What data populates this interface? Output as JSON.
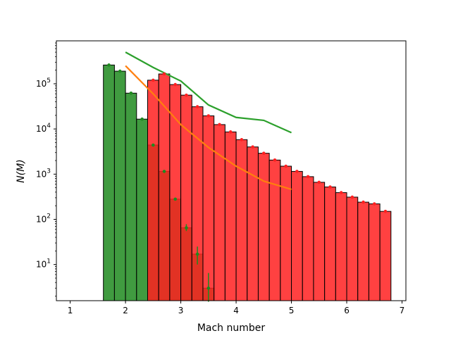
{
  "chart_data": {
    "type": "bar",
    "title": "",
    "xlabel": "Mach number",
    "ylabel": "N(M)",
    "xlim": [
      0.75,
      7.07
    ],
    "ylim_log10": [
      0.2,
      5.95
    ],
    "yscale": "log",
    "grid": false,
    "legend": "none",
    "bin_width": 0.2,
    "x_ticks": [
      1,
      2,
      3,
      4,
      5,
      6,
      7
    ],
    "y_ticks": [
      {
        "exp": 1,
        "label": "10",
        "sup": "1"
      },
      {
        "exp": 2,
        "label": "10",
        "sup": "2"
      },
      {
        "exp": 3,
        "label": "10",
        "sup": "3"
      },
      {
        "exp": 4,
        "label": "10",
        "sup": "4"
      },
      {
        "exp": 5,
        "label": "10",
        "sup": "5"
      }
    ],
    "series": [
      {
        "color": "#1f8a1f",
        "bar_alpha": 0.85,
        "bins": [
          {
            "left": 1.6,
            "value": 260000
          },
          {
            "left": 1.8,
            "value": 190000
          },
          {
            "left": 2.0,
            "value": 62000
          },
          {
            "left": 2.2,
            "value": 16500
          },
          {
            "left": 2.4,
            "value": 4400
          },
          {
            "left": 2.6,
            "value": 1150
          },
          {
            "left": 2.8,
            "value": 280
          },
          {
            "left": 3.0,
            "value": 65
          },
          {
            "left": 3.2,
            "value": 17
          },
          {
            "left": 3.4,
            "value": 3
          }
        ],
        "error_bars": [
          {
            "x": 3.1,
            "low": 55,
            "high": 78
          },
          {
            "x": 3.3,
            "low": 10,
            "high": 25
          },
          {
            "x": 3.5,
            "low": 1.5,
            "high": 6.5
          }
        ]
      },
      {
        "color": "#ff2020",
        "bar_alpha": 0.85,
        "bins": [
          {
            "left": 2.4,
            "value": 120000
          },
          {
            "left": 2.6,
            "value": 165000
          },
          {
            "left": 2.8,
            "value": 96000
          },
          {
            "left": 3.0,
            "value": 56000
          },
          {
            "left": 3.2,
            "value": 31000
          },
          {
            "left": 3.4,
            "value": 19500
          },
          {
            "left": 3.6,
            "value": 12500
          },
          {
            "left": 3.8,
            "value": 8600
          },
          {
            "left": 4.0,
            "value": 5800
          },
          {
            "left": 4.2,
            "value": 4000
          },
          {
            "left": 4.4,
            "value": 2900
          },
          {
            "left": 4.6,
            "value": 2050
          },
          {
            "left": 4.8,
            "value": 1500
          },
          {
            "left": 5.0,
            "value": 1150
          },
          {
            "left": 5.2,
            "value": 880
          },
          {
            "left": 5.4,
            "value": 660
          },
          {
            "left": 5.6,
            "value": 520
          },
          {
            "left": 5.8,
            "value": 390
          },
          {
            "left": 6.0,
            "value": 310
          },
          {
            "left": 6.2,
            "value": 240
          },
          {
            "left": 6.4,
            "value": 220
          },
          {
            "left": 6.6,
            "value": 150
          }
        ]
      }
    ],
    "lines": [
      {
        "color": "#2ca02c",
        "x": [
          2.0,
          2.5,
          3.0,
          3.5,
          4.0,
          4.5,
          5.0
        ],
        "y": [
          500000,
          230000,
          115000,
          34000,
          18000,
          15500,
          8300
        ]
      },
      {
        "color": "#ff7f0e",
        "x": [
          2.0,
          2.5,
          3.0,
          3.5,
          4.0,
          4.5,
          5.0
        ],
        "y": [
          250000,
          60000,
          12500,
          3900,
          1500,
          700,
          460
        ]
      }
    ]
  }
}
